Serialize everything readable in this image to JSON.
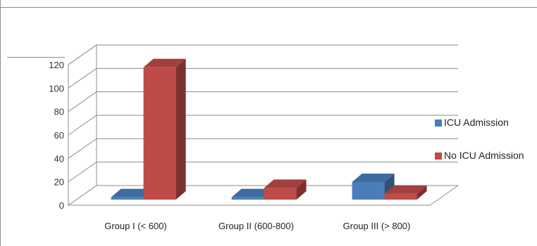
{
  "chart_data": {
    "type": "bar",
    "style": "3d-clustered-column",
    "categories": [
      "Group I (< 600)",
      "Group II (600-800)",
      "Group III (> 800)"
    ],
    "series": [
      {
        "name": "ICU Admission",
        "values": [
          2,
          2,
          15
        ],
        "color": "#4a7ebb"
      },
      {
        "name": "No ICU Admission",
        "values": [
          113,
          10,
          5
        ],
        "color": "#be4b48"
      }
    ],
    "y_ticks": [
      0,
      20,
      40,
      60,
      80,
      100,
      120
    ],
    "ylim": [
      0,
      120
    ],
    "grid": true,
    "legend_position": "right"
  }
}
